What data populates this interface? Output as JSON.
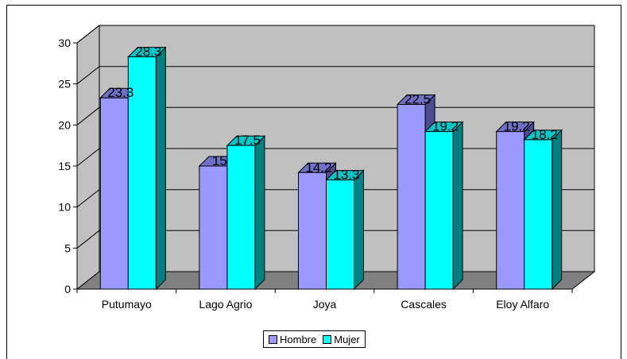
{
  "chart_data": {
    "type": "bar",
    "title": "",
    "xlabel": "",
    "ylabel": "",
    "categories": [
      "Putumayo",
      "Lago Agrio",
      "Joya",
      "Cascales",
      "Eloy Alfaro"
    ],
    "series": [
      {
        "name": "Hombre",
        "values": [
          23.3,
          15,
          14.2,
          22.5,
          19.2
        ],
        "labels": [
          "23.3",
          "15",
          "14.2",
          "22.5",
          "19.2"
        ],
        "color": "#9999ff",
        "side_color": "#4c4c8f",
        "top_color": "#7070c8"
      },
      {
        "name": "Mujer",
        "values": [
          28.3,
          17.5,
          13.3,
          19.2,
          18.2
        ],
        "labels": [
          "28.3",
          "17.5",
          "13.3",
          "19.2",
          "18.2"
        ],
        "color": "#00ffff",
        "side_color": "#008080",
        "top_color": "#00c8c8"
      }
    ],
    "ylim": [
      0,
      30
    ],
    "yticks": [
      "0",
      "5",
      "10",
      "15",
      "20",
      "25",
      "30"
    ],
    "grid": true,
    "legend": "bottom",
    "wall_color": "#c0c0c0",
    "floor_color": "#808080"
  }
}
